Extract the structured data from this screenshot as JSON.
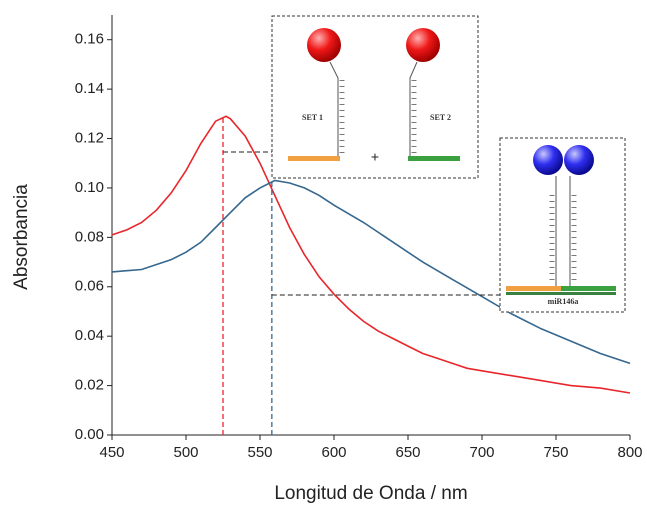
{
  "chart_data": {
    "type": "line",
    "x_label": "Longitud de Onda / nm",
    "y_label": "Absorbancia",
    "xlim": [
      450,
      800
    ],
    "ylim": [
      0,
      0.17
    ],
    "xticks": [
      450,
      500,
      550,
      600,
      650,
      700,
      750,
      800
    ],
    "yticks": [
      {
        "value": 0,
        "label": "0.00"
      },
      0.02,
      0.04,
      0.06,
      0.08,
      {
        "value": 0.1,
        "label": "0.10"
      },
      0.12,
      0.14,
      0.16
    ],
    "series": [
      {
        "color": "#e8262b",
        "x": [
          450,
          460,
          470,
          480,
          490,
          500,
          510,
          520,
          527,
          530,
          540,
          550,
          560,
          570,
          580,
          590,
          600,
          610,
          620,
          630,
          640,
          650,
          660,
          670,
          680,
          690,
          700,
          720,
          740,
          760,
          780,
          800
        ],
        "values": [
          0.081,
          0.083,
          0.086,
          0.091,
          0.098,
          0.107,
          0.118,
          0.127,
          0.129,
          0.128,
          0.121,
          0.11,
          0.097,
          0.084,
          0.073,
          0.064,
          0.057,
          0.051,
          0.046,
          0.042,
          0.039,
          0.036,
          0.033,
          0.031,
          0.029,
          0.027,
          0.026,
          0.024,
          0.022,
          0.02,
          0.019,
          0.017
        ]
      },
      {
        "color": "#35678f",
        "x": [
          450,
          470,
          490,
          500,
          510,
          520,
          530,
          540,
          550,
          560,
          570,
          580,
          590,
          600,
          620,
          640,
          660,
          680,
          700,
          720,
          740,
          760,
          780,
          800
        ],
        "values": [
          0.066,
          0.067,
          0.071,
          0.074,
          0.078,
          0.084,
          0.09,
          0.096,
          0.1,
          0.103,
          0.102,
          0.1,
          0.097,
          0.093,
          0.086,
          0.078,
          0.07,
          0.063,
          0.056,
          0.049,
          0.043,
          0.038,
          0.033,
          0.029
        ]
      }
    ],
    "markers": [
      {
        "x": 525,
        "y": 0.129,
        "color": "#e8262b"
      },
      {
        "x": 558,
        "y": 0.103,
        "color": "#35678f"
      }
    ],
    "insets": {
      "set1": "SET 1",
      "set2": "SET 2",
      "plus": "+",
      "target": "miR146a"
    }
  }
}
